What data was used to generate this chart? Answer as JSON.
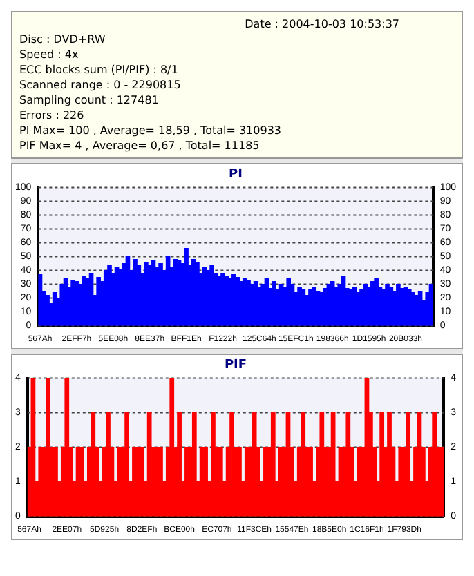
{
  "chart_data": [
    {
      "type": "other",
      "annotations": [
        "Date : 2004-10-03 10:53:37",
        "Disc : DVD+RW",
        "Speed : 4x",
        "ECC blocks sum (PI/PIF) : 8/1",
        "Scanned range : 0 - 2290815",
        "Sampling count : 127481",
        "Errors : 226",
        "PI Max= 100 , Average= 18,59 , Total= 310933",
        "PIF Max= 4 , Average= 0,67 , Total= 11185"
      ]
    },
    {
      "type": "bar",
      "title": "PI",
      "color": "#0000ff",
      "grid": "y",
      "legend": false,
      "ylim": [
        0,
        100
      ],
      "yticks": [
        0,
        10,
        20,
        30,
        40,
        50,
        60,
        70,
        80,
        90,
        100
      ],
      "y2lim": [
        0,
        100
      ],
      "y2ticks": [
        0,
        10,
        20,
        30,
        40,
        50,
        60,
        70,
        80,
        90,
        100
      ],
      "categories": [
        "567Ah",
        null,
        null,
        null,
        null,
        null,
        null,
        null,
        null,
        null,
        "2EFF7h",
        null,
        null,
        null,
        null,
        null,
        null,
        null,
        null,
        null,
        "5EE08h",
        null,
        null,
        null,
        null,
        null,
        null,
        null,
        null,
        null,
        "8EE37h",
        null,
        null,
        null,
        null,
        null,
        null,
        null,
        null,
        null,
        "BFF1Eh",
        null,
        null,
        null,
        null,
        null,
        null,
        null,
        null,
        null,
        "F1222h",
        null,
        null,
        null,
        null,
        null,
        null,
        null,
        null,
        null,
        "125C64h",
        null,
        null,
        null,
        null,
        null,
        null,
        null,
        null,
        null,
        "15EFC1h",
        null,
        null,
        null,
        null,
        null,
        null,
        null,
        null,
        null,
        "198366h",
        null,
        null,
        null,
        null,
        null,
        null,
        null,
        null,
        null,
        "1D1595h",
        null,
        null,
        null,
        null,
        null,
        null,
        null,
        null,
        null,
        "20B033h",
        null,
        null,
        null,
        null,
        null,
        null,
        null
      ],
      "values": [
        37,
        25,
        22,
        16,
        24,
        20,
        30,
        34,
        28,
        33,
        32,
        30,
        36,
        34,
        38,
        22,
        35,
        32,
        40,
        44,
        38,
        42,
        41,
        45,
        50,
        40,
        48,
        44,
        38,
        46,
        44,
        47,
        42,
        45,
        40,
        50,
        42,
        48,
        47,
        45,
        56,
        44,
        48,
        46,
        38,
        42,
        40,
        44,
        38,
        36,
        38,
        36,
        34,
        37,
        35,
        32,
        34,
        33,
        30,
        32,
        28,
        30,
        34,
        27,
        32,
        26,
        30,
        28,
        34,
        30,
        24,
        28,
        26,
        22,
        26,
        28,
        25,
        24,
        27,
        30,
        32,
        28,
        30,
        36,
        27,
        26,
        28,
        24,
        26,
        30,
        28,
        32,
        34,
        28,
        26,
        30,
        28,
        25,
        30,
        27,
        28,
        26,
        24,
        22,
        25,
        18,
        24,
        30
      ]
    },
    {
      "type": "bar",
      "title": "PIF",
      "color": "#ff0000",
      "grid": "y",
      "legend": false,
      "ylim": [
        0,
        4
      ],
      "yticks": [
        0,
        1,
        2,
        3,
        4
      ],
      "y2lim": [
        0,
        4
      ],
      "y2ticks": [
        0,
        1,
        2,
        3,
        4
      ],
      "categories": [
        "567Ah",
        null,
        null,
        null,
        null,
        null,
        null,
        null,
        null,
        null,
        "2EE07h",
        null,
        null,
        null,
        null,
        null,
        null,
        null,
        null,
        null,
        "5D925h",
        null,
        null,
        null,
        null,
        null,
        null,
        null,
        null,
        null,
        "8D2EFh",
        null,
        null,
        null,
        null,
        null,
        null,
        null,
        null,
        null,
        "BCE00h",
        null,
        null,
        null,
        null,
        null,
        null,
        null,
        null,
        null,
        "EC707h",
        null,
        null,
        null,
        null,
        null,
        null,
        null,
        null,
        null,
        "11F3CEh",
        null,
        null,
        null,
        null,
        null,
        null,
        null,
        null,
        null,
        "15547Eh",
        null,
        null,
        null,
        null,
        null,
        null,
        null,
        null,
        null,
        "18B5E0h",
        null,
        null,
        null,
        null,
        null,
        null,
        null,
        null,
        null,
        "1C16F1h",
        null,
        null,
        null,
        null,
        null,
        null,
        null,
        null,
        null,
        "1F793Dh",
        null,
        null,
        null,
        null,
        null,
        null,
        null,
        null,
        null,
        null
      ],
      "values": [
        2,
        4,
        1,
        2,
        2,
        4,
        2,
        2,
        1,
        2,
        4,
        2,
        1,
        2,
        2,
        1,
        2,
        3,
        2,
        1,
        2,
        3,
        2,
        1,
        2,
        2,
        3,
        1,
        2,
        2,
        2,
        1,
        3,
        2,
        2,
        2,
        1,
        2,
        4,
        2,
        3,
        1,
        2,
        2,
        3,
        1,
        2,
        2,
        1,
        3,
        2,
        2,
        1,
        2,
        3,
        2,
        2,
        1,
        2,
        2,
        3,
        2,
        1,
        2,
        2,
        3,
        1,
        2,
        2,
        3,
        2,
        1,
        2,
        3,
        2,
        2,
        1,
        2,
        3,
        2,
        2,
        3,
        1,
        2,
        2,
        3,
        2,
        1,
        2,
        2,
        4,
        3,
        2,
        1,
        3,
        2,
        3,
        2,
        1,
        2,
        2,
        3,
        1,
        2,
        3,
        2,
        1,
        2,
        3,
        2,
        2
      ]
    }
  ]
}
